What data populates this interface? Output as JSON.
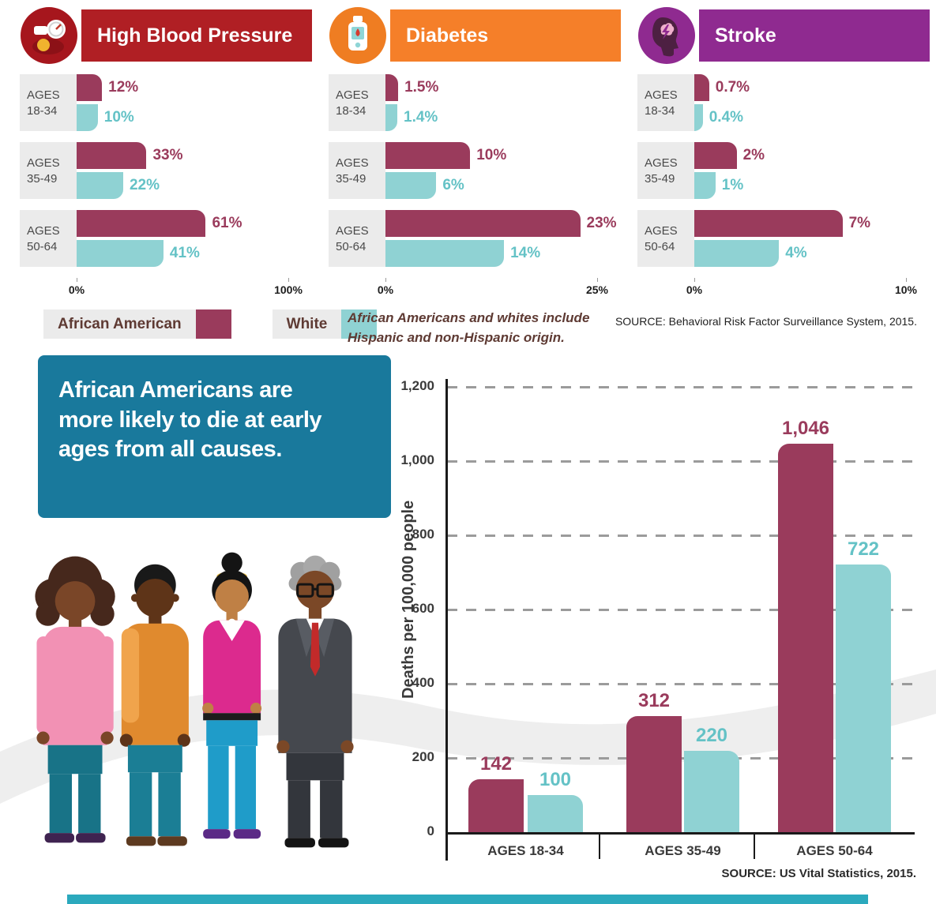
{
  "colors": {
    "maroon": "#9a3b5c",
    "teal_bar": "#8fd2d3",
    "teal_text": "#64c2c6",
    "red": "#b01f24",
    "orange": "#f57f29",
    "purple": "#8f2a90",
    "callout_bg": "#19799c",
    "strip": "#2ba9bd"
  },
  "panels": [
    {
      "id": "high-blood-pressure",
      "title": "High Blood Pressure",
      "color": "#b01f24",
      "max": 100,
      "axis_min": "0%",
      "axis_max": "100%",
      "rows": [
        {
          "age_line1": "AGES",
          "age_line2": "18-34",
          "aa": 12,
          "aa_label": "12%",
          "white": 10,
          "white_label": "10%"
        },
        {
          "age_line1": "AGES",
          "age_line2": "35-49",
          "aa": 33,
          "aa_label": "33%",
          "white": 22,
          "white_label": "22%"
        },
        {
          "age_line1": "AGES",
          "age_line2": "50-64",
          "aa": 61,
          "aa_label": "61%",
          "white": 41,
          "white_label": "41%"
        }
      ]
    },
    {
      "id": "diabetes",
      "title": "Diabetes",
      "color": "#f57f29",
      "max": 25,
      "axis_min": "0%",
      "axis_max": "25%",
      "rows": [
        {
          "age_line1": "AGES",
          "age_line2": "18-34",
          "aa": 1.5,
          "aa_label": "1.5%",
          "white": 1.4,
          "white_label": "1.4%"
        },
        {
          "age_line1": "AGES",
          "age_line2": "35-49",
          "aa": 10,
          "aa_label": "10%",
          "white": 6,
          "white_label": "6%"
        },
        {
          "age_line1": "AGES",
          "age_line2": "50-64",
          "aa": 23,
          "aa_label": "23%",
          "white": 14,
          "white_label": "14%"
        }
      ]
    },
    {
      "id": "stroke",
      "title": "Stroke",
      "color": "#8f2a90",
      "max": 10,
      "axis_min": "0%",
      "axis_max": "10%",
      "rows": [
        {
          "age_line1": "AGES",
          "age_line2": "18-34",
          "aa": 0.7,
          "aa_label": "0.7%",
          "white": 0.4,
          "white_label": "0.4%"
        },
        {
          "age_line1": "AGES",
          "age_line2": "35-49",
          "aa": 2,
          "aa_label": "2%",
          "white": 1,
          "white_label": "1%"
        },
        {
          "age_line1": "AGES",
          "age_line2": "50-64",
          "aa": 7,
          "aa_label": "7%",
          "white": 4,
          "white_label": "4%"
        }
      ]
    }
  ],
  "legend": {
    "african_american": "African American",
    "white": "White"
  },
  "note": {
    "line1": "African Americans and whites include",
    "line2": "Hispanic and non-Hispanic origin."
  },
  "top_source": "SOURCE: Behavioral Risk Factor Surveillance System, 2015.",
  "callout": {
    "line1": "African Americans are",
    "line2": "more likely to die at early",
    "line3": "ages from all causes."
  },
  "death_chart": {
    "ylabel": "Deaths per 100,000 people",
    "yticks": [
      {
        "value": 0,
        "label": "0"
      },
      {
        "value": 200,
        "label": "200"
      },
      {
        "value": 400,
        "label": "400"
      },
      {
        "value": 600,
        "label": "600"
      },
      {
        "value": 800,
        "label": "800"
      },
      {
        "value": 1000,
        "label": "1,000"
      },
      {
        "value": 1200,
        "label": "1,200"
      }
    ],
    "groups": [
      {
        "label": "AGES 18-34",
        "aa": 142,
        "aa_label": "142",
        "white": 100,
        "white_label": "100"
      },
      {
        "label": "AGES 35-49",
        "aa": 312,
        "aa_label": "312",
        "white": 220,
        "white_label": "220"
      },
      {
        "label": "AGES 50-64",
        "aa": 1046,
        "aa_label": "1,046",
        "white": 722,
        "white_label": "722"
      }
    ]
  },
  "bottom_source": "SOURCE: US Vital Statistics, 2015.",
  "chart_data": [
    {
      "type": "bar",
      "orientation": "horizontal",
      "title": "High Blood Pressure",
      "categories": [
        "Ages 18-34",
        "Ages 35-49",
        "Ages 50-64"
      ],
      "series": [
        {
          "name": "African American",
          "values": [
            12,
            33,
            61
          ]
        },
        {
          "name": "White",
          "values": [
            10,
            22,
            41
          ]
        }
      ],
      "unit": "%",
      "xlim": [
        0,
        100
      ],
      "legend_position": "bottom"
    },
    {
      "type": "bar",
      "orientation": "horizontal",
      "title": "Diabetes",
      "categories": [
        "Ages 18-34",
        "Ages 35-49",
        "Ages 50-64"
      ],
      "series": [
        {
          "name": "African American",
          "values": [
            1.5,
            10,
            23
          ]
        },
        {
          "name": "White",
          "values": [
            1.4,
            6,
            14
          ]
        }
      ],
      "unit": "%",
      "xlim": [
        0,
        25
      ],
      "legend_position": "bottom"
    },
    {
      "type": "bar",
      "orientation": "horizontal",
      "title": "Stroke",
      "categories": [
        "Ages 18-34",
        "Ages 35-49",
        "Ages 50-64"
      ],
      "series": [
        {
          "name": "African American",
          "values": [
            0.7,
            2,
            7
          ]
        },
        {
          "name": "White",
          "values": [
            0.4,
            1,
            4
          ]
        }
      ],
      "unit": "%",
      "xlim": [
        0,
        10
      ],
      "legend_position": "bottom"
    },
    {
      "type": "bar",
      "orientation": "vertical",
      "title": "African Americans are more likely to die at early ages from all causes.",
      "ylabel": "Deaths per 100,000 people",
      "categories": [
        "AGES 18-34",
        "AGES 35-49",
        "AGES 50-64"
      ],
      "series": [
        {
          "name": "African American",
          "values": [
            142,
            312,
            1046
          ]
        },
        {
          "name": "White",
          "values": [
            100,
            220,
            722
          ]
        }
      ],
      "ylim": [
        0,
        1200
      ],
      "grid": "dashed horizontal"
    }
  ]
}
